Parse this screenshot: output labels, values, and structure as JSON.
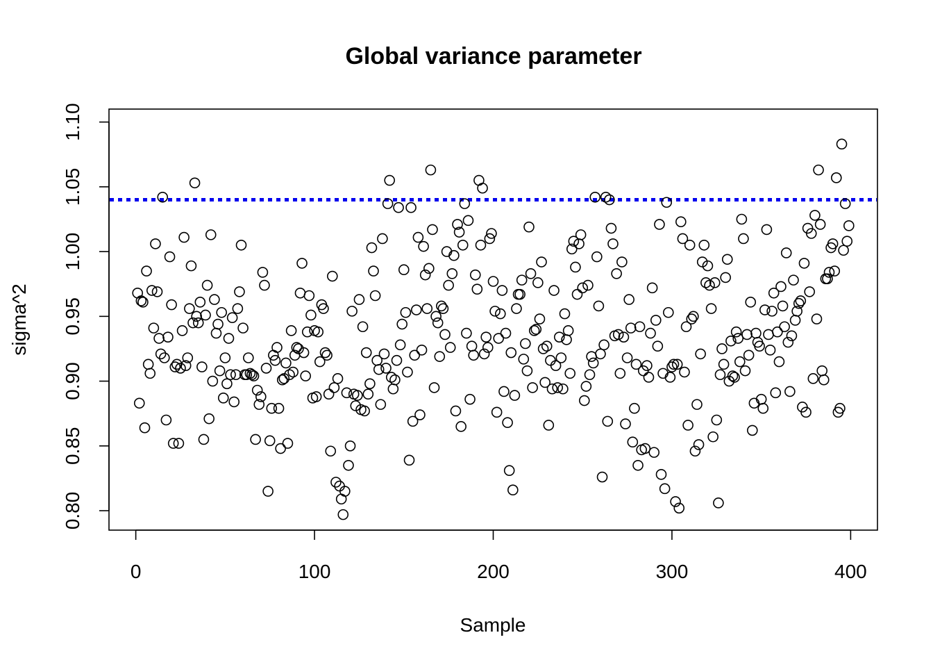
{
  "chart_data": {
    "type": "scatter",
    "title": "Global variance parameter",
    "xlabel": "Sample",
    "ylabel": "sigma^2",
    "xlim": [
      -15,
      415
    ],
    "ylim": [
      0.785,
      1.11
    ],
    "x_ticks": [
      0,
      100,
      200,
      300,
      400
    ],
    "x_tick_labels": [
      "0",
      "100",
      "200",
      "300",
      "400"
    ],
    "y_ticks": [
      0.8,
      0.85,
      0.9,
      0.95,
      1.0,
      1.05,
      1.1
    ],
    "y_tick_labels": [
      "0.80",
      "0.85",
      "0.90",
      "0.95",
      "1.00",
      "1.05",
      "1.10"
    ],
    "grid": false,
    "reference_line": {
      "y": 1.04,
      "style": "dotted",
      "color": "#0000ee"
    },
    "point_color": "#000000",
    "x_start": 1,
    "y": [
      0.968,
      0.883,
      0.962,
      0.961,
      0.864,
      0.985,
      0.913,
      0.906,
      0.97,
      0.941,
      1.006,
      0.969,
      0.933,
      0.921,
      1.042,
      0.918,
      0.87,
      0.934,
      0.996,
      0.959,
      0.852,
      0.911,
      0.913,
      0.852,
      0.91,
      0.939,
      1.011,
      0.912,
      0.918,
      0.956,
      0.989,
      0.945,
      1.053,
      0.95,
      0.945,
      0.961,
      0.911,
      0.855,
      0.951,
      0.974,
      0.871,
      1.013,
      0.9,
      0.963,
      0.937,
      0.944,
      0.908,
      0.953,
      0.887,
      0.918,
      0.898,
      0.933,
      0.905,
      0.949,
      0.884,
      0.905,
      0.956,
      0.969,
      1.005,
      0.941,
      0.905,
      0.905,
      0.918,
      0.906,
      0.905,
      0.904,
      0.855,
      0.893,
      0.882,
      0.888,
      0.984,
      0.974,
      0.91,
      0.815,
      0.854,
      0.879,
      0.92,
      0.916,
      0.926,
      0.879,
      0.848,
      0.901,
      0.902,
      0.914,
      0.852,
      0.905,
      0.939,
      0.907,
      0.92,
      0.926,
      0.925,
      0.968,
      0.991,
      0.922,
      0.904,
      0.938,
      0.966,
      0.951,
      0.887,
      0.939,
      0.888,
      0.938,
      0.915,
      0.959,
      0.956,
      0.922,
      0.92,
      0.89,
      0.846,
      0.981,
      0.895,
      0.822,
      0.902,
      0.819,
      0.809,
      0.797,
      0.815,
      0.891,
      0.835,
      0.85,
      0.954,
      0.89,
      0.881,
      0.889,
      0.963,
      0.878,
      0.942,
      0.877,
      0.922,
      0.89,
      0.898,
      1.003,
      0.985,
      0.966,
      0.916,
      0.909,
      0.882,
      1.01,
      0.921,
      0.91,
      1.037,
      1.055,
      0.903,
      0.894,
      0.901,
      0.916,
      1.034,
      0.928,
      0.944,
      0.986,
      0.953,
      0.907,
      0.839,
      1.034,
      0.869,
      0.92,
      0.955,
      1.011,
      0.874,
      0.924,
      1.004,
      0.982,
      0.956,
      0.987,
      1.063,
      1.017,
      0.895,
      0.95,
      0.945,
      0.919,
      0.958,
      0.956,
      0.936,
      1.0,
      0.974,
      0.926,
      0.983,
      0.997,
      0.877,
      1.021,
      1.015,
      0.865,
      1.005,
      1.037,
      0.937,
      1.024,
      0.886,
      0.927,
      0.92,
      0.982,
      0.971,
      1.055,
      1.005,
      1.049,
      0.921,
      0.934,
      0.926,
      1.01,
      1.014,
      0.977,
      0.954,
      0.876,
      0.933,
      0.952,
      0.97,
      0.892,
      0.937,
      0.868,
      0.831,
      0.922,
      0.816,
      0.889,
      0.956,
      0.967,
      0.967,
      0.978,
      0.917,
      0.929,
      0.908,
      1.019,
      0.983,
      0.895,
      0.939,
      0.94,
      0.976,
      0.948,
      0.992,
      0.925,
      0.899,
      0.927,
      0.866,
      0.916,
      0.894,
      0.97,
      0.912,
      0.895,
      0.934,
      0.918,
      0.894,
      0.952,
      0.932,
      0.939,
      0.906,
      1.002,
      1.008,
      0.988,
      0.967,
      1.006,
      1.013,
      0.972,
      0.885,
      0.896,
      0.974,
      0.905,
      0.919,
      0.914,
      1.042,
      0.996,
      0.958,
      0.921,
      0.826,
      0.928,
      1.042,
      0.869,
      1.04,
      1.018,
      1.006,
      0.935,
      0.983,
      0.936,
      0.906,
      0.992,
      0.934,
      0.867,
      0.918,
      0.963,
      0.941,
      0.853,
      0.879,
      0.913,
      0.835,
      0.942,
      0.847,
      0.908,
      0.848,
      0.912,
      0.903,
      0.937,
      0.972,
      0.845,
      0.947,
      0.927,
      1.021,
      0.828,
      0.906,
      0.817,
      1.038,
      0.953,
      0.903,
      0.911,
      0.913,
      0.807,
      0.913,
      0.802,
      1.023,
      1.01,
      0.907,
      0.942,
      0.866,
      1.005,
      0.948,
      0.95,
      0.846,
      0.882,
      0.851,
      0.921,
      0.992,
      1.005,
      0.976,
      0.989,
      0.974,
      0.956,
      0.857,
      0.976,
      0.87,
      0.806,
      0.905,
      0.925,
      0.913,
      0.98,
      0.994,
      0.9,
      0.931,
      0.904,
      0.903,
      0.938,
      0.933,
      0.915,
      1.025,
      1.01,
      0.908,
      0.936,
      0.92,
      0.961,
      0.862,
      0.883,
      0.937,
      0.93,
      0.927,
      0.886,
      0.879,
      0.955,
      1.017,
      0.936,
      0.924,
      0.954,
      0.968,
      0.891,
      0.938,
      0.915,
      0.973,
      0.958,
      0.942,
      0.999,
      0.93,
      0.892,
      0.935,
      0.978,
      0.947,
      0.954,
      0.96,
      0.962,
      0.88,
      0.991,
      0.876,
      1.018,
      0.969,
      1.014,
      0.902,
      1.028,
      0.948,
      1.063,
      1.021,
      0.908,
      0.901,
      0.979,
      0.979,
      0.984,
      1.003,
      1.006,
      0.985,
      1.057,
      0.876,
      0.879,
      1.083,
      1.001,
      1.037,
      1.008,
      1.02
    ]
  }
}
